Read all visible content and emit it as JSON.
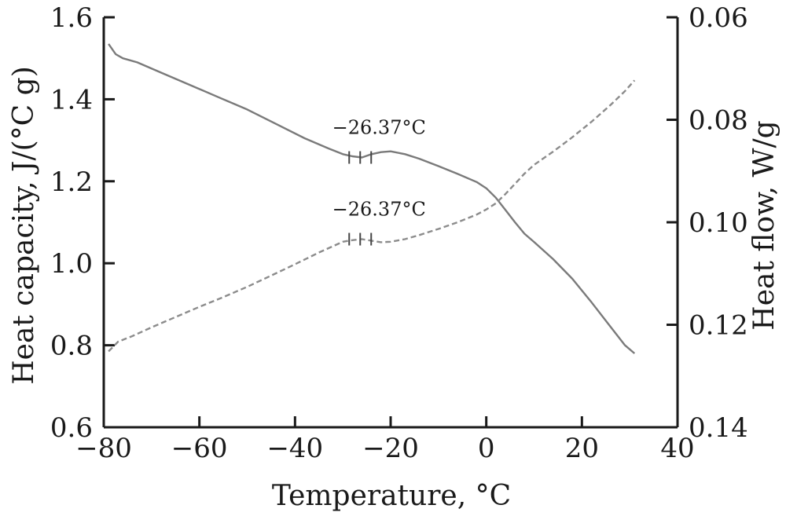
{
  "chart_data": {
    "type": "line",
    "title": "",
    "xlabel": "Temperature, °C",
    "ylabel_left": "Heat capacity, J/(°C g)",
    "ylabel_right": "Heat flow, W/g",
    "xlim": [
      -80,
      40
    ],
    "ylim_left": [
      0.6,
      1.6
    ],
    "ylim_right": [
      0.06,
      0.14
    ],
    "right_axis_inverted": true,
    "grid": false,
    "x_ticks": [
      -80,
      -60,
      -40,
      -20,
      0,
      20,
      40
    ],
    "x_tick_labels": [
      "−80",
      "−60",
      "−40",
      "−20",
      "0",
      "20",
      "40"
    ],
    "y_left_ticks": [
      0.6,
      0.8,
      1.0,
      1.2,
      1.4,
      1.6
    ],
    "y_left_tick_labels": [
      "0.6",
      "0.8",
      "1.0",
      "1.2",
      "1.4",
      "1.6"
    ],
    "y_right_ticks": [
      0.06,
      0.08,
      0.1,
      0.12,
      0.14
    ],
    "y_right_tick_labels": [
      "0.06",
      "0.08",
      "0.10",
      "0.12",
      "0.14"
    ],
    "colors": {
      "solid": "#7a7a7a",
      "dashed": "#8c8c8c",
      "axis": "#1a1a1a"
    },
    "series": [
      {
        "style": "solid",
        "axis": "left",
        "x": [
          -79,
          -77.5,
          -76,
          -73,
          -68,
          -62,
          -56,
          -50,
          -44,
          -38,
          -33,
          -30,
          -28,
          -26,
          -24,
          -22,
          -20,
          -17,
          -14,
          -10,
          -6,
          -2,
          0,
          2,
          4,
          6,
          8,
          10,
          14,
          18,
          22,
          26,
          29,
          31
        ],
        "y": [
          1.535,
          1.51,
          1.5,
          1.49,
          1.465,
          1.435,
          1.405,
          1.375,
          1.34,
          1.305,
          1.28,
          1.266,
          1.261,
          1.258,
          1.266,
          1.271,
          1.273,
          1.266,
          1.255,
          1.237,
          1.218,
          1.198,
          1.183,
          1.16,
          1.13,
          1.1,
          1.072,
          1.052,
          1.01,
          0.962,
          0.905,
          0.845,
          0.8,
          0.78
        ]
      },
      {
        "style": "dashed",
        "axis": "right",
        "x": [
          -79,
          -77,
          -74,
          -70,
          -65,
          -60,
          -55,
          -50,
          -45,
          -40,
          -35,
          -30,
          -28,
          -26,
          -24,
          -22,
          -20,
          -17,
          -14,
          -10,
          -6,
          -2,
          0,
          2,
          4,
          6,
          8,
          10,
          14,
          18,
          22,
          26,
          29,
          31
        ],
        "y": [
          0.1252,
          0.1233,
          0.1222,
          0.1205,
          0.1185,
          0.1165,
          0.1146,
          0.1126,
          0.1104,
          0.1082,
          0.1059,
          0.1038,
          0.1035,
          0.1033,
          0.1036,
          0.1039,
          0.1038,
          0.1033,
          0.1025,
          0.1013,
          0.1,
          0.0985,
          0.0975,
          0.0963,
          0.0945,
          0.0925,
          0.0905,
          0.0888,
          0.0862,
          0.0834,
          0.0804,
          0.0771,
          0.0744,
          0.0723
        ]
      }
    ],
    "annotations": [
      {
        "text": "−26.37°C",
        "x": -26.37,
        "y": 1.258,
        "axis": "left"
      },
      {
        "text": "−26.37°C",
        "x": -26.37,
        "y": 0.1033,
        "axis": "right"
      }
    ]
  }
}
